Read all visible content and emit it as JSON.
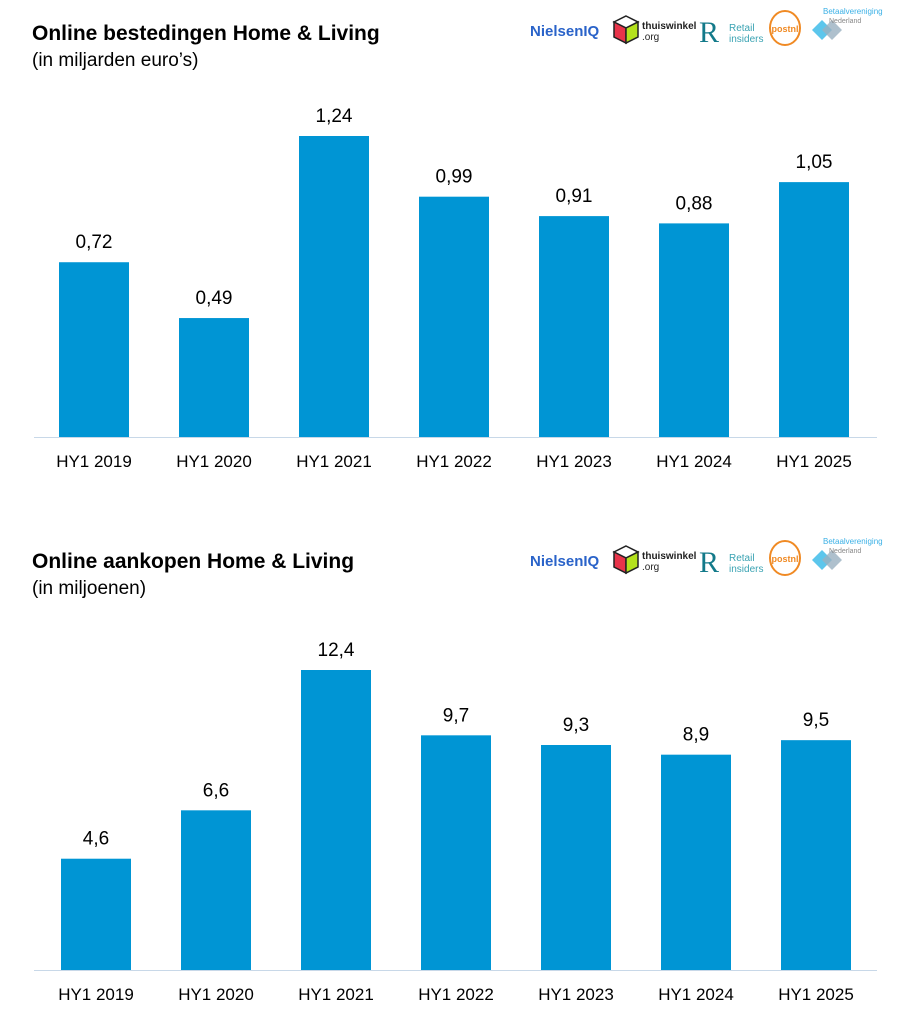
{
  "logos": [
    "NielsenIQ",
    "thuiswinkel.org",
    "Retail insiders",
    "postnl",
    "Betaalvereniging Nederland"
  ],
  "chart_data": [
    {
      "type": "bar",
      "title": "Online bestedingen Home & Living",
      "subtitle": "(in miljarden euro’s)",
      "categories": [
        "HY1 2019",
        "HY1 2020",
        "HY1 2021",
        "HY1 2022",
        "HY1 2023",
        "HY1 2024",
        "HY1 2025"
      ],
      "values": [
        0.72,
        0.49,
        1.24,
        0.99,
        0.91,
        0.88,
        1.05
      ],
      "value_labels": [
        "0,72",
        "0,49",
        "1,24",
        "0,99",
        "0,91",
        "0,88",
        "1,05"
      ],
      "ylim": [
        0,
        1.24
      ],
      "grid": false,
      "bar_color": "#0095d4"
    },
    {
      "type": "bar",
      "title": "Online aankopen Home & Living",
      "subtitle": "(in miljoenen)",
      "categories": [
        "HY1 2019",
        "HY1 2020",
        "HY1 2021",
        "HY1 2022",
        "HY1 2023",
        "HY1 2024",
        "HY1 2025"
      ],
      "values": [
        4.6,
        6.6,
        12.4,
        9.7,
        9.3,
        8.9,
        9.5
      ],
      "value_labels": [
        "4,6",
        "6,6",
        "12,4",
        "9,7",
        "9,3",
        "8,9",
        "9,5"
      ],
      "ylim": [
        0,
        12.4
      ],
      "grid": false,
      "bar_color": "#0095d4"
    }
  ]
}
